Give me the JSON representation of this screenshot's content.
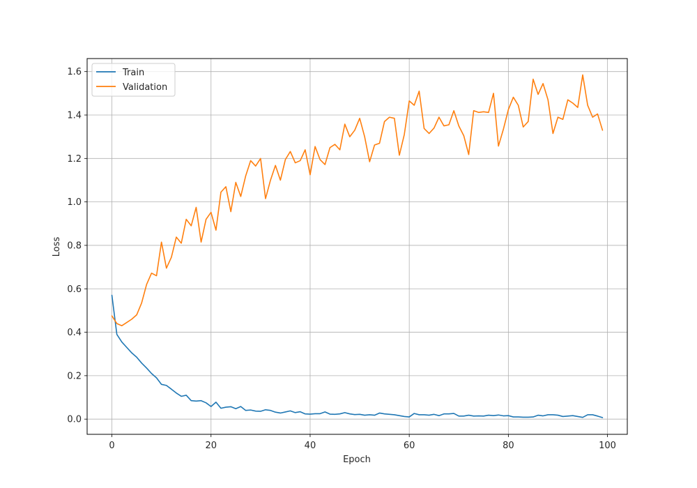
{
  "chart_data": {
    "type": "line",
    "title": "",
    "xlabel": "Epoch",
    "ylabel": "Loss",
    "xlim": [
      -5,
      104
    ],
    "ylim": [
      -0.07,
      1.66
    ],
    "xticks": [
      0,
      20,
      40,
      60,
      80,
      100
    ],
    "yticks": [
      0.0,
      0.2,
      0.4,
      0.6,
      0.8,
      1.0,
      1.2,
      1.4,
      1.6
    ],
    "xtick_labels": [
      "0",
      "20",
      "40",
      "60",
      "80",
      "100"
    ],
    "ytick_labels": [
      "0.0",
      "0.2",
      "0.4",
      "0.6",
      "0.8",
      "1.0",
      "1.2",
      "1.4",
      "1.6"
    ],
    "grid": true,
    "legend_position": "top-left",
    "series": [
      {
        "name": "Train",
        "color": "#1f77b4",
        "x": [
          0,
          1,
          2,
          3,
          4,
          5,
          6,
          7,
          8,
          9,
          10,
          11,
          12,
          13,
          14,
          15,
          16,
          17,
          18,
          19,
          20,
          21,
          22,
          23,
          24,
          25,
          26,
          27,
          28,
          29,
          30,
          31,
          32,
          33,
          34,
          35,
          36,
          37,
          38,
          39,
          40,
          41,
          42,
          43,
          44,
          45,
          46,
          47,
          48,
          49,
          50,
          51,
          52,
          53,
          54,
          55,
          56,
          57,
          58,
          59,
          60,
          61,
          62,
          63,
          64,
          65,
          66,
          67,
          68,
          69,
          70,
          71,
          72,
          73,
          74,
          75,
          76,
          77,
          78,
          79,
          80,
          81,
          82,
          83,
          84,
          85,
          86,
          87,
          88,
          89,
          90,
          91,
          92,
          93,
          94,
          95,
          96,
          97,
          98,
          99
        ],
        "values": [
          0.57,
          0.39,
          0.355,
          0.33,
          0.305,
          0.285,
          0.258,
          0.235,
          0.21,
          0.19,
          0.16,
          0.155,
          0.138,
          0.12,
          0.105,
          0.11,
          0.085,
          0.083,
          0.085,
          0.075,
          0.058,
          0.078,
          0.05,
          0.055,
          0.057,
          0.048,
          0.058,
          0.04,
          0.042,
          0.037,
          0.036,
          0.043,
          0.04,
          0.032,
          0.028,
          0.033,
          0.038,
          0.03,
          0.034,
          0.024,
          0.023,
          0.025,
          0.025,
          0.033,
          0.023,
          0.022,
          0.024,
          0.03,
          0.024,
          0.021,
          0.022,
          0.018,
          0.02,
          0.018,
          0.028,
          0.024,
          0.022,
          0.02,
          0.016,
          0.012,
          0.01,
          0.026,
          0.02,
          0.02,
          0.018,
          0.022,
          0.016,
          0.024,
          0.024,
          0.026,
          0.014,
          0.014,
          0.018,
          0.014,
          0.015,
          0.014,
          0.018,
          0.016,
          0.019,
          0.015,
          0.016,
          0.01,
          0.01,
          0.009,
          0.009,
          0.01,
          0.018,
          0.015,
          0.02,
          0.02,
          0.018,
          0.012,
          0.014,
          0.016,
          0.012,
          0.008,
          0.02,
          0.02,
          0.014,
          0.007
        ]
      },
      {
        "name": "Validation",
        "color": "#ff7f0e",
        "x": [
          0,
          1,
          2,
          3,
          4,
          5,
          6,
          7,
          8,
          9,
          10,
          11,
          12,
          13,
          14,
          15,
          16,
          17,
          18,
          19,
          20,
          21,
          22,
          23,
          24,
          25,
          26,
          27,
          28,
          29,
          30,
          31,
          32,
          33,
          34,
          35,
          36,
          37,
          38,
          39,
          40,
          41,
          42,
          43,
          44,
          45,
          46,
          47,
          48,
          49,
          50,
          51,
          52,
          53,
          54,
          55,
          56,
          57,
          58,
          59,
          60,
          61,
          62,
          63,
          64,
          65,
          66,
          67,
          68,
          69,
          70,
          71,
          72,
          73,
          74,
          75,
          76,
          77,
          78,
          79,
          80,
          81,
          82,
          83,
          84,
          85,
          86,
          87,
          88,
          89,
          90,
          91,
          92,
          93,
          94,
          95,
          96,
          97,
          98,
          99
        ],
        "values": [
          0.475,
          0.44,
          0.43,
          0.445,
          0.46,
          0.48,
          0.535,
          0.62,
          0.672,
          0.66,
          0.815,
          0.695,
          0.745,
          0.838,
          0.81,
          0.92,
          0.89,
          0.975,
          0.815,
          0.92,
          0.952,
          0.87,
          1.045,
          1.07,
          0.955,
          1.09,
          1.025,
          1.12,
          1.19,
          1.165,
          1.2,
          1.015,
          1.1,
          1.168,
          1.1,
          1.195,
          1.232,
          1.18,
          1.19,
          1.24,
          1.125,
          1.255,
          1.195,
          1.172,
          1.25,
          1.265,
          1.24,
          1.358,
          1.3,
          1.33,
          1.385,
          1.3,
          1.185,
          1.262,
          1.27,
          1.37,
          1.39,
          1.385,
          1.215,
          1.31,
          1.465,
          1.445,
          1.51,
          1.338,
          1.315,
          1.34,
          1.39,
          1.35,
          1.355,
          1.42,
          1.35,
          1.305,
          1.218,
          1.42,
          1.412,
          1.415,
          1.412,
          1.5,
          1.257,
          1.335,
          1.425,
          1.482,
          1.445,
          1.345,
          1.37,
          1.565,
          1.495,
          1.545,
          1.47,
          1.315,
          1.39,
          1.38,
          1.47,
          1.455,
          1.435,
          1.585,
          1.445,
          1.39,
          1.405,
          1.33
        ]
      }
    ]
  }
}
